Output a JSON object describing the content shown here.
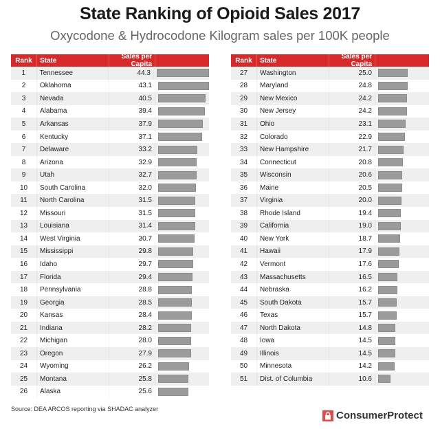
{
  "title": "State Ranking of Opioid Sales 2017",
  "subtitle": "Oxycodone & Hydrocodone Kilogram sales per 100K people",
  "source": "Source: DEA ARCOS reporting via SHADAC analyzer",
  "logo": {
    "text": "ConsumerProtect",
    "icon": "lock-icon",
    "color": "#e04a4a"
  },
  "colors": {
    "header": "#d7282a",
    "bar": "#9b9b9b",
    "stripe": "#efefef"
  },
  "chart_data": {
    "type": "table",
    "title": "State Ranking of Opioid Sales 2017",
    "subtitle": "Oxycodone & Hydrocodone Kilogram sales per 100K people",
    "columns": [
      "Rank",
      "State",
      "Sales per Capita"
    ],
    "rows": [
      [
        1,
        "Tennessee",
        44.3
      ],
      [
        2,
        "Oklahoma",
        43.1
      ],
      [
        3,
        "Nevada",
        40.5
      ],
      [
        4,
        "Alabama",
        39.4
      ],
      [
        5,
        "Arkansas",
        37.9
      ],
      [
        6,
        "Kentucky",
        37.1
      ],
      [
        7,
        "Delaware",
        33.2
      ],
      [
        8,
        "Arizona",
        32.9
      ],
      [
        9,
        "Utah",
        32.7
      ],
      [
        10,
        "South Carolina",
        32.0
      ],
      [
        11,
        "North Carolina",
        31.5
      ],
      [
        12,
        "Missouri",
        31.5
      ],
      [
        13,
        "Louisiana",
        31.4
      ],
      [
        14,
        "West Virginia",
        30.7
      ],
      [
        15,
        "Mississippi",
        29.8
      ],
      [
        16,
        "Idaho",
        29.7
      ],
      [
        17,
        "Florida",
        29.4
      ],
      [
        18,
        "Pennsylvania",
        28.8
      ],
      [
        19,
        "Georgia",
        28.5
      ],
      [
        20,
        "Kansas",
        28.4
      ],
      [
        21,
        "Indiana",
        28.2
      ],
      [
        22,
        "Michigan",
        28.0
      ],
      [
        23,
        "Oregon",
        27.9
      ],
      [
        24,
        "Wyoming",
        26.2
      ],
      [
        25,
        "Montana",
        25.8
      ],
      [
        26,
        "Alaska",
        25.6
      ],
      [
        27,
        "Washington",
        25.0
      ],
      [
        28,
        "Maryland",
        24.8
      ],
      [
        29,
        "New Mexico",
        24.2
      ],
      [
        30,
        "New Jersey",
        24.2
      ],
      [
        31,
        "Ohio",
        23.1
      ],
      [
        32,
        "Colorado",
        22.9
      ],
      [
        33,
        "New Hampshire",
        21.7
      ],
      [
        34,
        "Connecticut",
        20.8
      ],
      [
        35,
        "Wisconsin",
        20.6
      ],
      [
        36,
        "Maine",
        20.5
      ],
      [
        37,
        "Virginia",
        20.0
      ],
      [
        38,
        "Rhode Island",
        19.4
      ],
      [
        39,
        "California",
        19.0
      ],
      [
        40,
        "New York",
        18.7
      ],
      [
        41,
        "Hawaii",
        17.9
      ],
      [
        42,
        "Vermont",
        17.6
      ],
      [
        43,
        "Massachusetts",
        16.5
      ],
      [
        44,
        "Nebraska",
        16.2
      ],
      [
        45,
        "South Dakota",
        15.7
      ],
      [
        46,
        "Texas",
        15.7
      ],
      [
        47,
        "North Dakota",
        14.8
      ],
      [
        48,
        "Iowa",
        14.5
      ],
      [
        49,
        "Illinois",
        14.5
      ],
      [
        50,
        "Minnesota",
        14.2
      ],
      [
        51,
        "Dist. of Columbia",
        10.6
      ]
    ]
  }
}
